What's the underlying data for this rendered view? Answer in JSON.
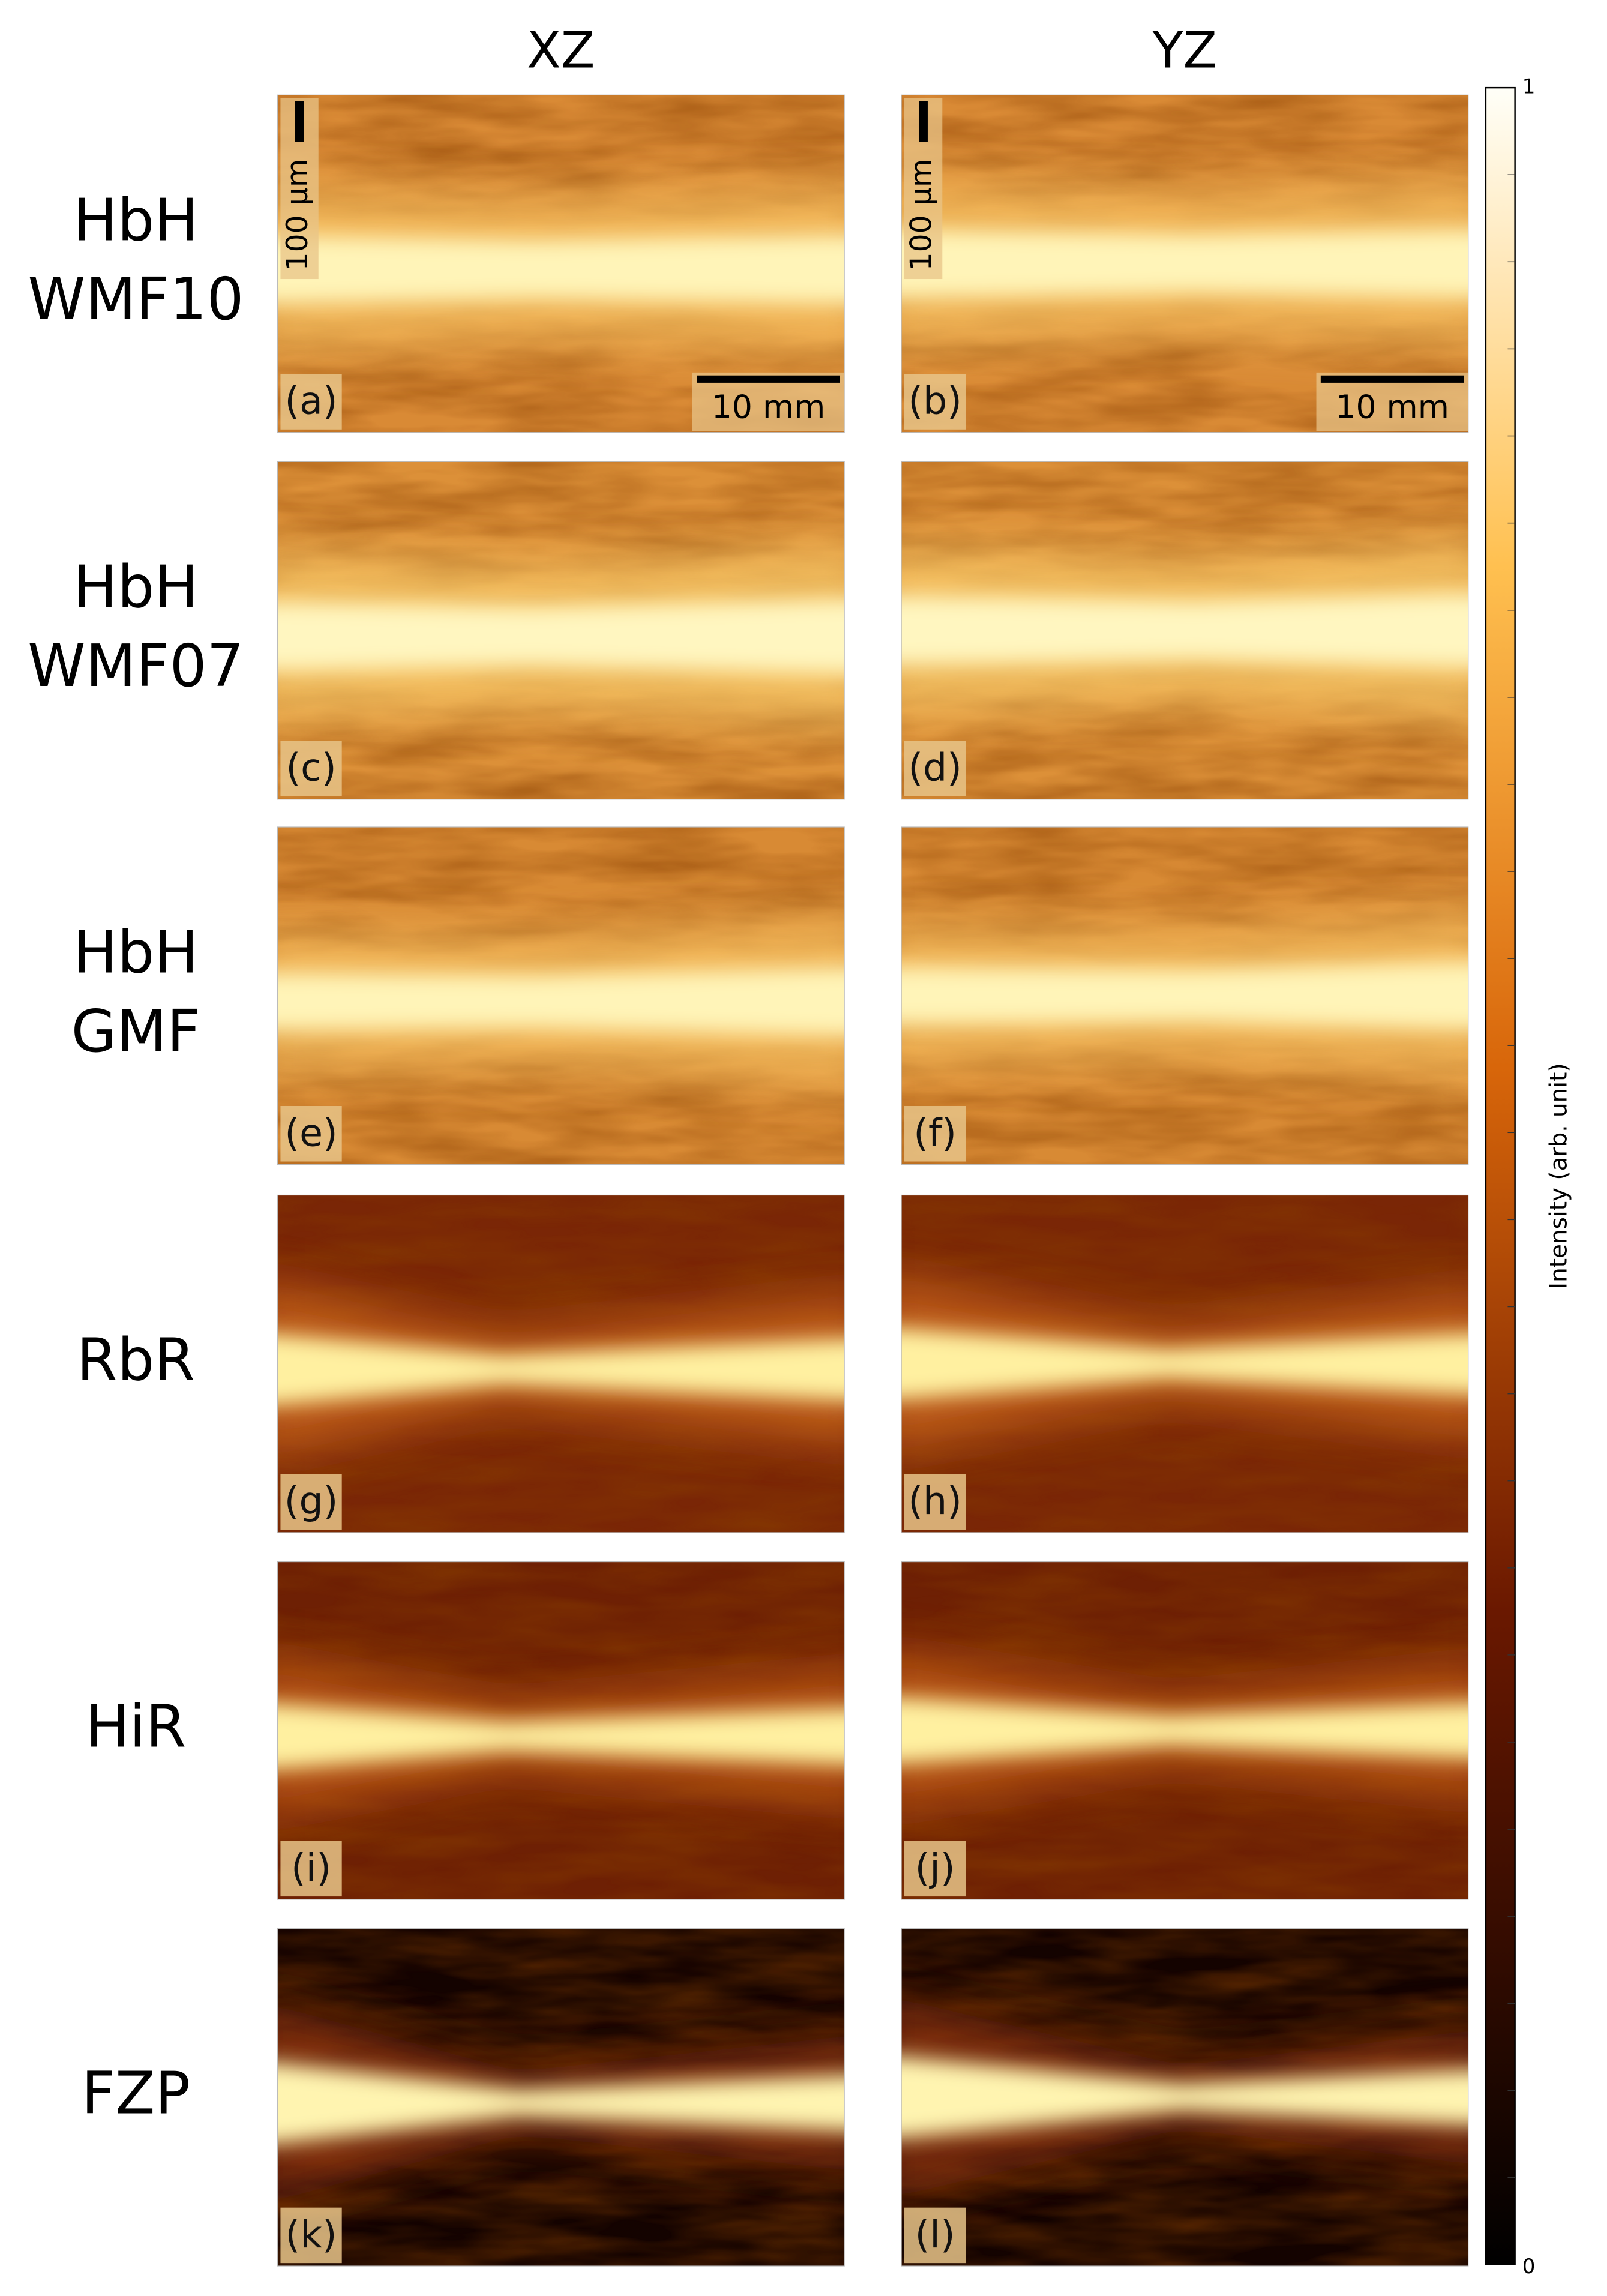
{
  "columns": [
    "XZ",
    "YZ"
  ],
  "rows": [
    {
      "label": [
        "HbH",
        "WMF10"
      ],
      "panels": [
        "(a)",
        "(b)"
      ]
    },
    {
      "label": [
        "HbH",
        "WMF07"
      ],
      "panels": [
        "(c)",
        "(d)"
      ]
    },
    {
      "label": [
        "HbH",
        "GMF"
      ],
      "panels": [
        "(e)",
        "(f)"
      ]
    },
    {
      "label": [
        "RbR"
      ],
      "panels": [
        "(g)",
        "(h)"
      ]
    },
    {
      "label": [
        "HiR"
      ],
      "panels": [
        "(i)",
        "(j)"
      ]
    },
    {
      "label": [
        "FZP"
      ],
      "panels": [
        "(k)",
        "(l)"
      ]
    }
  ],
  "scale_bars": {
    "vertical": "100 μm",
    "horizontal": "10 mm"
  },
  "colorbar": {
    "label": "Intensity (arb. unit)",
    "max": "1",
    "min": "0"
  }
}
